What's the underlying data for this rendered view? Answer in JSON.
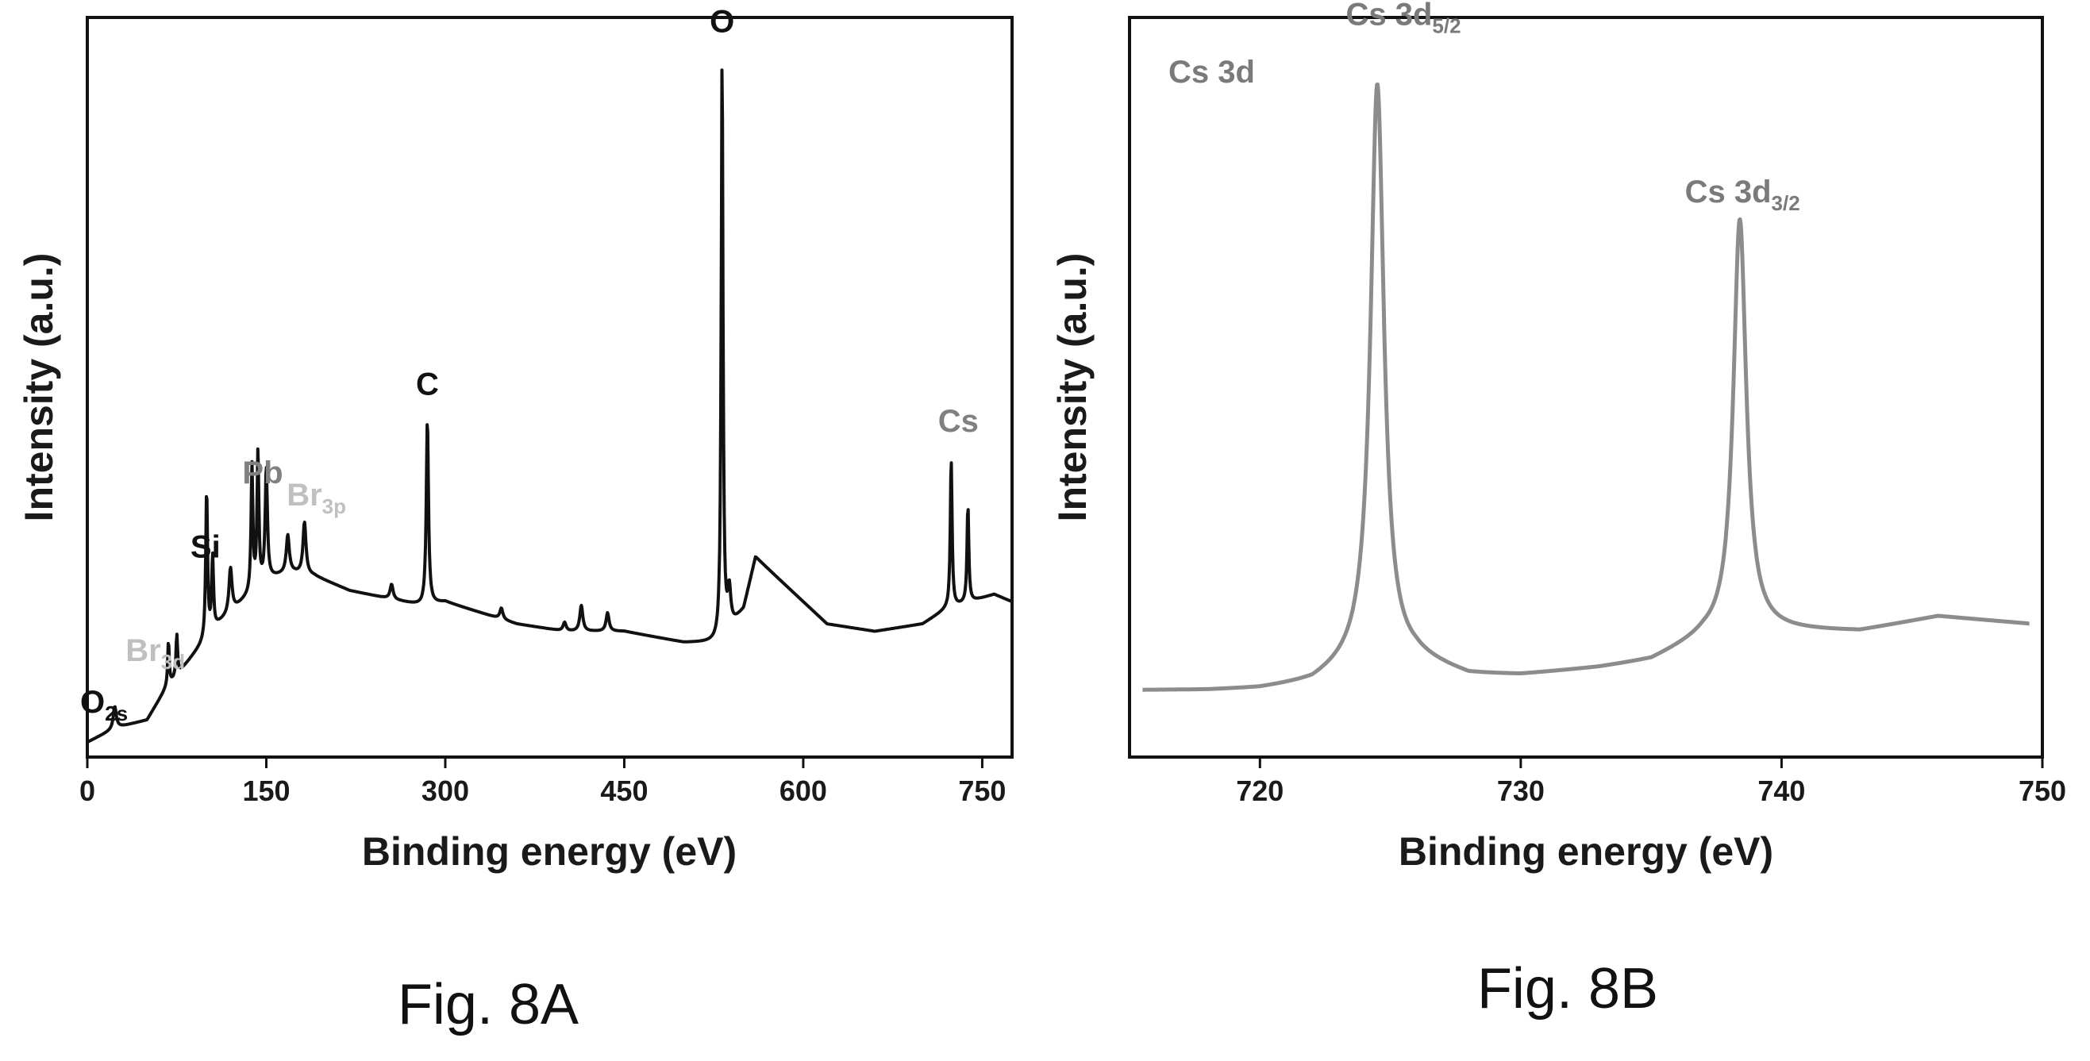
{
  "chart_data": [
    {
      "type": "line",
      "caption": "Fig. 8A",
      "xlabel": "Binding energy (eV)",
      "ylabel": "Intensity (a.u.)",
      "xlim": [
        0,
        775
      ],
      "ylim": [
        0,
        1.0
      ],
      "x_ticks": [
        "0",
        "150",
        "300",
        "450",
        "600",
        "750"
      ],
      "x_tick_values": [
        0,
        150,
        300,
        450,
        600,
        750
      ],
      "line_color": "#111111",
      "label_colors": {
        "dark": "#111111",
        "medium": "#808080",
        "light": "#c0c0c0"
      },
      "baseline": [
        [
          0,
          0.02
        ],
        [
          25,
          0.04
        ],
        [
          50,
          0.05
        ],
        [
          65,
          0.09
        ],
        [
          80,
          0.12
        ],
        [
          95,
          0.15
        ],
        [
          110,
          0.18
        ],
        [
          130,
          0.21
        ],
        [
          150,
          0.24
        ],
        [
          170,
          0.25
        ],
        [
          190,
          0.245
        ],
        [
          220,
          0.225
        ],
        [
          250,
          0.215
        ],
        [
          280,
          0.205
        ],
        [
          300,
          0.21
        ],
        [
          330,
          0.195
        ],
        [
          360,
          0.18
        ],
        [
          400,
          0.17
        ],
        [
          450,
          0.17
        ],
        [
          500,
          0.155
        ],
        [
          530,
          0.155
        ],
        [
          550,
          0.2
        ],
        [
          560,
          0.27
        ],
        [
          580,
          0.24
        ],
        [
          620,
          0.18
        ],
        [
          660,
          0.17
        ],
        [
          700,
          0.18
        ],
        [
          720,
          0.2
        ],
        [
          740,
          0.21
        ],
        [
          760,
          0.22
        ],
        [
          775,
          0.21
        ]
      ],
      "peaks": [
        {
          "x": 23,
          "h": 0.03,
          "w": 3
        },
        {
          "x": 68,
          "h": 0.06,
          "w": 1.6
        },
        {
          "x": 75,
          "h": 0.055,
          "w": 1.6
        },
        {
          "x": 100,
          "h": 0.2,
          "w": 1.8
        },
        {
          "x": 105,
          "h": 0.1,
          "w": 1.8
        },
        {
          "x": 120,
          "h": 0.06,
          "w": 3
        },
        {
          "x": 138,
          "h": 0.17,
          "w": 1.8
        },
        {
          "x": 143,
          "h": 0.18,
          "w": 1.8
        },
        {
          "x": 150,
          "h": 0.15,
          "w": 2.2
        },
        {
          "x": 168,
          "h": 0.05,
          "w": 3
        },
        {
          "x": 182,
          "h": 0.07,
          "w": 3
        },
        {
          "x": 255,
          "h": 0.02,
          "w": 3
        },
        {
          "x": 285,
          "h": 0.25,
          "w": 2.2
        },
        {
          "x": 347,
          "h": 0.015,
          "w": 3
        },
        {
          "x": 400,
          "h": 0.012,
          "w": 3
        },
        {
          "x": 414,
          "h": 0.035,
          "w": 3
        },
        {
          "x": 436,
          "h": 0.025,
          "w": 3
        },
        {
          "x": 532,
          "h": 0.79,
          "w": 1.8
        },
        {
          "x": 538,
          "h": 0.05,
          "w": 3
        },
        {
          "x": 724,
          "h": 0.2,
          "w": 1.8
        },
        {
          "x": 738,
          "h": 0.13,
          "w": 1.8
        }
      ],
      "labels": [
        {
          "text": "O",
          "sub": "",
          "x": 532,
          "y": 0.98,
          "tone": "dark"
        },
        {
          "text": "C",
          "sub": "",
          "x": 285,
          "y": 0.49,
          "tone": "dark"
        },
        {
          "text": "Cs",
          "sub": "",
          "x": 730,
          "y": 0.44,
          "tone": "medium"
        },
        {
          "text": "Pb",
          "sub": "",
          "x": 147,
          "y": 0.37,
          "tone": "medium"
        },
        {
          "text": "Br",
          "sub": "3p",
          "x": 192,
          "y": 0.34,
          "tone": "light"
        },
        {
          "text": "Si",
          "sub": "",
          "x": 99,
          "y": 0.27,
          "tone": "dark"
        },
        {
          "text": "Br",
          "sub": "3d",
          "x": 57,
          "y": 0.13,
          "tone": "light"
        },
        {
          "text": "O",
          "sub": "2s",
          "x": 14,
          "y": 0.06,
          "tone": "dark"
        }
      ]
    },
    {
      "type": "line",
      "caption": "Fig. 8B",
      "panel_label": "Cs 3d",
      "xlabel": "Binding energy (eV)",
      "ylabel": "Intensity (a.u.)",
      "xlim": [
        715,
        750
      ],
      "ylim": [
        0,
        1.0
      ],
      "x_ticks": [
        "720",
        "730",
        "740",
        "750"
      ],
      "x_tick_values": [
        720,
        730,
        740,
        750
      ],
      "line_color": "#8c8c8c",
      "label_color": "#7a7a7a",
      "baseline": [
        [
          715.5,
          0.09
        ],
        [
          718,
          0.09
        ],
        [
          720,
          0.092
        ],
        [
          722,
          0.1
        ],
        [
          724,
          0.13
        ],
        [
          726,
          0.13
        ],
        [
          728,
          0.11
        ],
        [
          730,
          0.11
        ],
        [
          733,
          0.12
        ],
        [
          735,
          0.13
        ],
        [
          737,
          0.16
        ],
        [
          739,
          0.17
        ],
        [
          741,
          0.17
        ],
        [
          743,
          0.17
        ],
        [
          746,
          0.19
        ],
        [
          749.5,
          0.18
        ]
      ],
      "peaks": [
        {
          "x": 724.5,
          "h": 0.78,
          "w": 0.62
        },
        {
          "x": 738.4,
          "h": 0.56,
          "w": 0.6
        }
      ],
      "labels": [
        {
          "text": "Cs 3d",
          "sub": "5/2",
          "x": 725.5,
          "y": 0.99
        },
        {
          "text": "Cs 3d",
          "sub": "3/2",
          "x": 738.5,
          "y": 0.75
        }
      ]
    }
  ]
}
